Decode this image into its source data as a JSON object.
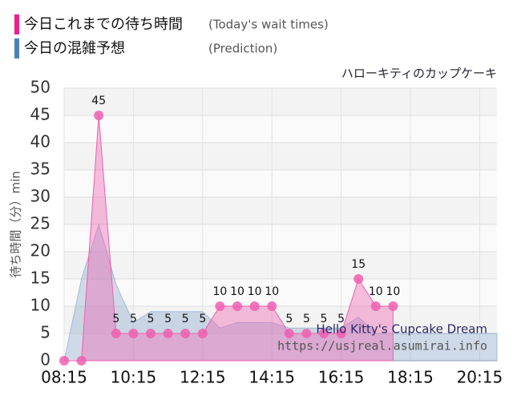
{
  "chart_data": {
    "type": "area",
    "legend": [
      {
        "label": "今日これまでの待ち時間",
        "note": "(Today's wait times)",
        "color": "#ee1e8c"
      },
      {
        "label": "今日の混雑予想",
        "note": "(Prediction)",
        "color": "#4a82b8"
      }
    ],
    "subtitle": "ハローキティのカップケーキ",
    "ylabel": "待ち時間（分）min",
    "watermark": [
      "Hello Kitty's Cupcake Dream",
      "https://usjreal.asumirai.info"
    ],
    "xlim": [
      "08:15",
      "20:45"
    ],
    "xticks": [
      "08:15",
      "10:15",
      "12:15",
      "14:15",
      "16:15",
      "18:15",
      "20:15"
    ],
    "ylim": [
      0,
      50
    ],
    "yticks": [
      0,
      5,
      10,
      15,
      20,
      25,
      30,
      35,
      40,
      45,
      50
    ],
    "grid": true,
    "series": [
      {
        "name": "今日の混雑予想",
        "color": "#7f9fc8",
        "x": [
          "08:15",
          "08:45",
          "09:15",
          "09:45",
          "10:15",
          "10:45",
          "11:15",
          "11:45",
          "12:15",
          "12:45",
          "13:15",
          "13:45",
          "14:15",
          "14:45",
          "15:15",
          "15:45",
          "16:15",
          "16:45",
          "17:15",
          "17:45",
          "18:15",
          "18:45",
          "19:15",
          "19:45",
          "20:15",
          "20:45"
        ],
        "values": [
          0,
          15,
          25,
          14,
          7,
          9,
          9,
          9,
          9,
          6,
          7,
          7,
          7,
          6,
          6,
          6,
          6,
          8,
          5,
          5,
          5,
          5,
          5,
          5,
          5,
          5
        ]
      },
      {
        "name": "今日これまでの待ち時間",
        "color": "#ee5fb0",
        "x": [
          "08:15",
          "08:45",
          "09:15",
          "09:45",
          "10:15",
          "10:45",
          "11:15",
          "11:45",
          "12:15",
          "12:45",
          "13:15",
          "13:45",
          "14:15",
          "14:45",
          "15:15",
          "15:45",
          "16:15",
          "16:45",
          "17:15",
          "17:45"
        ],
        "values": [
          0,
          0,
          45,
          5,
          5,
          5,
          5,
          5,
          5,
          10,
          10,
          10,
          10,
          5,
          5,
          5,
          5,
          15,
          10,
          10
        ]
      }
    ]
  }
}
